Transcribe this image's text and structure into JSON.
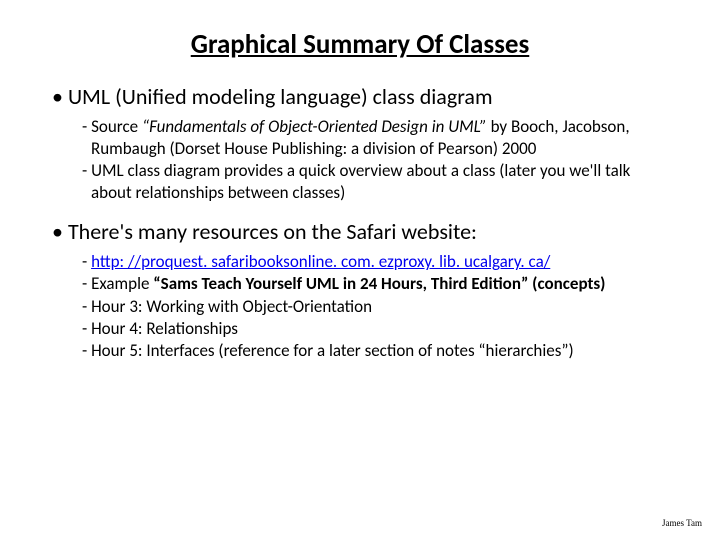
{
  "title": "Graphical Summary Of Classes",
  "bullets": [
    {
      "text": "UML (Unified modeling language) class diagram",
      "subs": [
        {
          "prefix": "- ",
          "pre": "Source ",
          "italic": "“Fundamentals of Object-Oriented Design in UML”",
          "post": " by Booch, Jacobson, Rumbaugh (Dorset House Publishing: a division of Pearson) 2000"
        },
        {
          "prefix": "- ",
          "text": "UML class diagram provides a quick overview about a class (later you we'll talk about relationships between classes)"
        }
      ]
    },
    {
      "text": "There's many resources on the Safari website:",
      "subs": [
        {
          "prefix": "- ",
          "link": "http: //proquest. safaribooksonline. com. ezproxy. lib. ucalgary. ca/"
        },
        {
          "prefix": "- ",
          "pre": "Example ",
          "bold": "“Sams Teach Yourself UML in 24 Hours, Third Edition” (concepts)"
        },
        {
          "prefix": "- ",
          "text": "Hour 3: Working with Object-Orientation"
        },
        {
          "prefix": "- ",
          "text": "Hour 4: Relationships"
        },
        {
          "prefix": "-  ",
          "text": "Hour 5: Interfaces (reference for a later section of notes “hierarchies”)"
        }
      ]
    }
  ],
  "footer": "James Tam"
}
